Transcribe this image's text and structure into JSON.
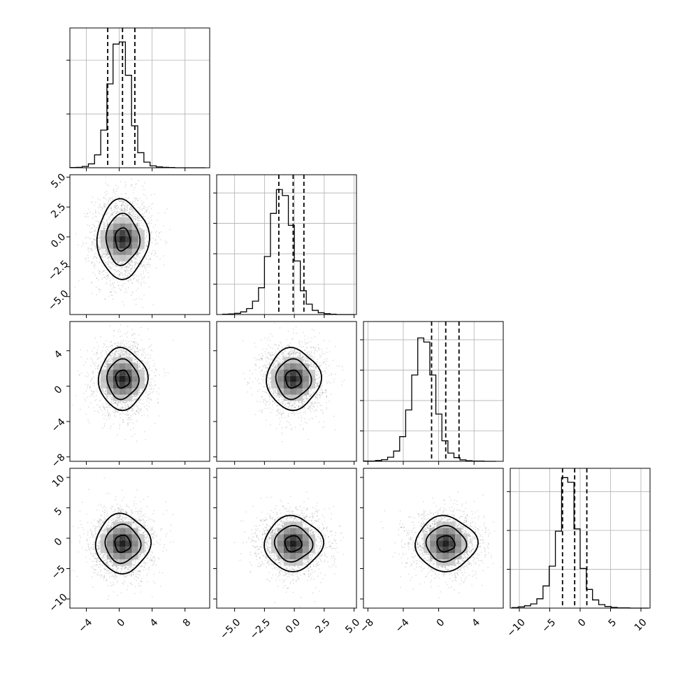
{
  "chart_data": {
    "type": "corner",
    "grid": true,
    "parameters": [
      {
        "index": 0,
        "range": [
          -6,
          11
        ],
        "ticks": [
          -4,
          0,
          4,
          8
        ],
        "tick_labels": [
          "−4",
          "0",
          "4",
          "8"
        ],
        "quantiles": [
          -1.4,
          0.4,
          1.9
        ],
        "hist_ticks": 2
      },
      {
        "index": 1,
        "range": [
          -6.5,
          5.2
        ],
        "ticks": [
          -5.0,
          -2.5,
          0.0,
          2.5,
          5.0
        ],
        "tick_labels": [
          "−5.0",
          "−2.5",
          "0.0",
          "2.5",
          "5.0"
        ],
        "quantiles": [
          -1.3,
          -0.1,
          0.8
        ],
        "hist_ticks": 4
      },
      {
        "index": 2,
        "range": [
          -8.5,
          7.3
        ],
        "ticks": [
          -8,
          -4,
          0,
          4
        ],
        "tick_labels": [
          "−8",
          "−4",
          "0",
          "4"
        ],
        "quantiles": [
          -0.8,
          0.8,
          2.3
        ],
        "hist_ticks": 4
      },
      {
        "index": 3,
        "range": [
          -11.5,
          11.5
        ],
        "ticks": [
          -10,
          -5,
          0,
          5,
          10
        ],
        "tick_labels": [
          "−10",
          "−5",
          "0",
          "5",
          "10"
        ],
        "quantiles": [
          -2.9,
          -0.9,
          1.1
        ],
        "hist_ticks": 3
      }
    ],
    "histograms": [
      {
        "param": 0,
        "bin_edges_range": [
          -6,
          10.5
        ],
        "bins": 22,
        "counts": [
          1,
          2,
          6,
          18,
          60,
          175,
          390,
          575,
          585,
          430,
          195,
          70,
          26,
          9,
          4,
          2,
          1,
          0,
          0,
          0,
          0,
          0
        ],
        "ylim": [
          0,
          650
        ]
      },
      {
        "param": 1,
        "bin_edges_range": [
          -6,
          5
        ],
        "bins": 22,
        "counts": [
          1,
          2,
          4,
          9,
          20,
          45,
          90,
          195,
          340,
          420,
          400,
          300,
          180,
          80,
          35,
          14,
          6,
          3,
          1,
          0,
          0,
          0
        ],
        "ylim": [
          0,
          470
        ]
      },
      {
        "param": 2,
        "bin_edges_range": [
          -8.5,
          6.5
        ],
        "bins": 22,
        "counts": [
          1,
          1,
          4,
          8,
          20,
          50,
          120,
          250,
          420,
          600,
          580,
          420,
          230,
          100,
          40,
          18,
          7,
          3,
          1,
          1,
          0,
          0
        ],
        "ylim": [
          0,
          680
        ]
      },
      {
        "param": 3,
        "bin_edges_range": [
          -11.2,
          11.2
        ],
        "bins": 22,
        "counts": [
          2,
          5,
          10,
          18,
          40,
          95,
          180,
          330,
          560,
          540,
          340,
          170,
          80,
          35,
          15,
          7,
          3,
          1,
          1,
          0,
          0,
          0
        ],
        "ylim": [
          0,
          600
        ]
      }
    ],
    "pairs": [
      {
        "x": 0,
        "y": 1,
        "center": [
          0.4,
          -0.2
        ],
        "sigma": [
          1.8,
          1.9
        ]
      },
      {
        "x": 0,
        "y": 2,
        "center": [
          0.4,
          0.8
        ],
        "sigma": [
          1.7,
          2.0
        ]
      },
      {
        "x": 1,
        "y": 2,
        "center": [
          -0.1,
          0.8
        ],
        "sigma": [
          1.3,
          2.0
        ]
      },
      {
        "x": 0,
        "y": 3,
        "center": [
          0.4,
          -0.9
        ],
        "sigma": [
          1.9,
          2.8
        ]
      },
      {
        "x": 1,
        "y": 3,
        "center": [
          -0.1,
          -0.9
        ],
        "sigma": [
          1.4,
          2.6
        ]
      },
      {
        "x": 2,
        "y": 3,
        "center": [
          0.8,
          -0.9
        ],
        "sigma": [
          2.0,
          2.6
        ]
      }
    ],
    "contour_levels_sigma": [
      0.5,
      1.1,
      1.7
    ]
  }
}
